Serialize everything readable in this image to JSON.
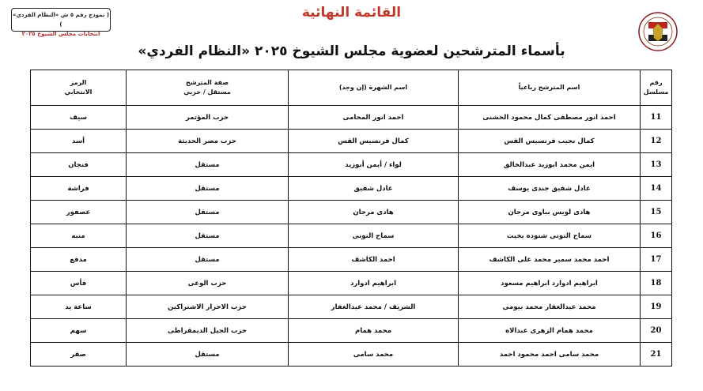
{
  "header": {
    "form_box": {
      "line1": "( نموذج رقم ٥ ش «النظام الفردي» )",
      "line2": "انتخابات مجلس الشيوخ ٢٠٢٥"
    },
    "title": "القائمة النهائية",
    "subtitle": "بأسماء المترشحين لعضوية مجلس الشيوخ ٢٠٢٥ «النظام الفردي»",
    "logo": "national-election-authority-emblem"
  },
  "table": {
    "columns": [
      {
        "line1": "رقم",
        "line2": "مسلسل"
      },
      {
        "line1": "اسم المترشح رباعياً",
        "line2": ""
      },
      {
        "line1": "اسم الشهرة (إن وجد)",
        "line2": ""
      },
      {
        "line1": "صفة المترشح",
        "line2": "مستقل / حزبي"
      },
      {
        "line1": "الرمز",
        "line2": "الانتخابي"
      }
    ],
    "rows": [
      {
        "serial": "11",
        "name": "احمد انور مصطفى كمال محمود الخشنى",
        "nickname": "احمد انور المحامى",
        "status": "حزب المؤتمر",
        "symbol": "سيف"
      },
      {
        "serial": "12",
        "name": "كمال نجيب فرنسيس القس",
        "nickname": "كمال فرنسيس القس",
        "status": "حزب مصر الحديثة",
        "symbol": "أسد"
      },
      {
        "serial": "13",
        "name": "ايمن محمد ابوزيد عبدالخالق",
        "nickname": "لواء / أيمن أبوزيد",
        "status": "مستقل",
        "symbol": "فنجان"
      },
      {
        "serial": "14",
        "name": "عادل شفيق جندى يوسف",
        "nickname": "عادل شفيق",
        "status": "مستقل",
        "symbol": "فراشة"
      },
      {
        "serial": "15",
        "name": "هادى لويس بباوى مرجان",
        "nickname": "هادى مرجان",
        "status": "مستقل",
        "symbol": "عصفور"
      },
      {
        "serial": "16",
        "name": "سماح التونى شنوده بخيت",
        "nickname": "سماح التونى",
        "status": "مستقل",
        "symbol": "منبه"
      },
      {
        "serial": "17",
        "name": "احمد محمد سمير محمد على الكاشف",
        "nickname": "احمد الكاشف",
        "status": "مستقل",
        "symbol": "مدفع"
      },
      {
        "serial": "18",
        "name": "ابراهيم ادوارد ابراهيم مسعود",
        "nickname": "ابراهيم ادوارد",
        "status": "حزب الوعى",
        "symbol": "فأس"
      },
      {
        "serial": "19",
        "name": "محمد عبدالغفار محمد بيومى",
        "nickname": "الشريف / محمد عبدالغفار",
        "status": "حزب الاحرار الاشتراكين",
        "symbol": "ساعة يد"
      },
      {
        "serial": "20",
        "name": "محمد همام الزهرى عبدالاه",
        "nickname": "محمد همام",
        "status": "حزب الجيل الديمقراطى",
        "symbol": "سهم"
      },
      {
        "serial": "21",
        "name": "محمد سامى احمد محمود احمد",
        "nickname": "محمد سامى",
        "status": "مستقل",
        "symbol": "صقر"
      }
    ]
  },
  "colors": {
    "title": "#c0392b",
    "text": "#111111",
    "border": "#111111"
  }
}
